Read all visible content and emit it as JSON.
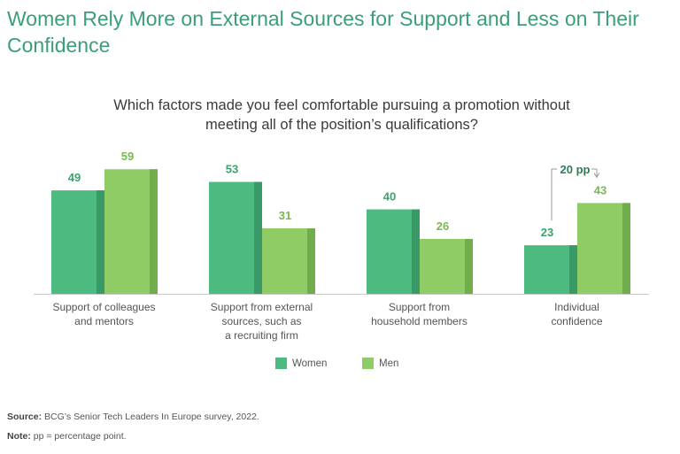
{
  "title": "Women Rely More on External Sources for Support and Less on Their Confidence",
  "chart_data": {
    "type": "bar",
    "title": "Which factors made you feel comfortable pursuing a promotion without meeting all of the position’s qualifications?",
    "categories": [
      [
        "Support of colleagues",
        "and mentors"
      ],
      [
        "Support from external",
        "sources, such as",
        "a recruiting firm"
      ],
      [
        "Support from",
        "household members"
      ],
      [
        "Individual",
        "confidence"
      ]
    ],
    "series": [
      {
        "name": "Women",
        "values": [
          49,
          53,
          40,
          23
        ]
      },
      {
        "name": "Men",
        "values": [
          59,
          31,
          26,
          43
        ]
      }
    ],
    "ylim": [
      0,
      70
    ],
    "xlabel": "",
    "ylabel": "",
    "legend": "bottom-center",
    "annotation": {
      "text": "20 pp",
      "category_index": 3
    },
    "colors": {
      "women": "#4dbb7f",
      "women_shade": "#3a9a67",
      "men": "#8fcc66",
      "men_shade": "#72ad4d",
      "value_women": "#3aa26e",
      "value_men": "#79b94f",
      "annotation": "#2e7d57"
    }
  },
  "footer": {
    "source_label": "Source:",
    "source_text": "BCG’s Senior Tech Leaders In Europe survey, 2022.",
    "note_label": "Note:",
    "note_text": "pp = percentage point."
  }
}
